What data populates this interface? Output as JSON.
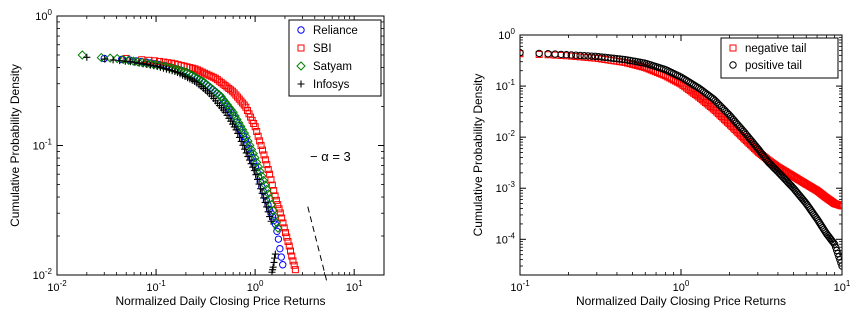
{
  "chart_data": [
    {
      "type": "scatter",
      "xlabel": "Normalized Daily Closing Price Returns",
      "ylabel": "Cumulative Probability Density",
      "xscale": "log",
      "yscale": "log",
      "xlim": [
        0.01,
        20
      ],
      "ylim": [
        0.01,
        1
      ],
      "x_ticks": [
        {
          "value": 0.01,
          "base": "10",
          "exp": "-2"
        },
        {
          "value": 0.1,
          "base": "10",
          "exp": "-1"
        },
        {
          "value": 1,
          "base": "10",
          "exp": "0"
        },
        {
          "value": 10,
          "base": "10",
          "exp": "1"
        }
      ],
      "y_ticks": [
        {
          "value": 0.01,
          "base": "10",
          "exp": "-2"
        },
        {
          "value": 0.1,
          "base": "10",
          "exp": "-1"
        },
        {
          "value": 1,
          "base": "10",
          "exp": "0"
        }
      ],
      "grid": false,
      "legend_position": "top-right",
      "series": [
        {
          "name": "Reliance",
          "marker": "circle",
          "color": "#0000ff",
          "n": 70,
          "x": [
            0.03,
            0.05,
            0.08,
            0.13,
            0.2,
            0.3,
            0.45,
            0.6,
            0.8,
            1.0,
            1.2,
            1.4,
            1.6,
            1.7,
            1.8,
            1.9
          ],
          "y": [
            0.47,
            0.46,
            0.44,
            0.41,
            0.37,
            0.31,
            0.24,
            0.17,
            0.11,
            0.07,
            0.045,
            0.032,
            0.025,
            0.02,
            0.015,
            0.012
          ]
        },
        {
          "name": "SBI",
          "marker": "square",
          "color": "#ff0000",
          "n": 78,
          "x": [
            0.05,
            0.1,
            0.15,
            0.25,
            0.4,
            0.6,
            0.8,
            1.0,
            1.2,
            1.4,
            1.6,
            1.8,
            2.0,
            2.2,
            2.4,
            2.55
          ],
          "y": [
            0.47,
            0.45,
            0.43,
            0.39,
            0.33,
            0.26,
            0.2,
            0.14,
            0.09,
            0.06,
            0.04,
            0.03,
            0.022,
            0.017,
            0.013,
            0.011
          ]
        },
        {
          "name": "Satyam",
          "marker": "diamond",
          "color": "#008000",
          "n": 70,
          "x": [
            0.018,
            0.025,
            0.04,
            0.07,
            0.12,
            0.2,
            0.3,
            0.45,
            0.6,
            0.8,
            1.0,
            1.2,
            1.4,
            1.55,
            1.7
          ],
          "y": [
            0.5,
            0.48,
            0.47,
            0.44,
            0.41,
            0.37,
            0.31,
            0.24,
            0.18,
            0.12,
            0.08,
            0.055,
            0.04,
            0.03,
            0.023
          ]
        },
        {
          "name": "Infosys",
          "marker": "plus",
          "color": "#000000",
          "n": 70,
          "x": [
            0.02,
            0.035,
            0.06,
            0.1,
            0.16,
            0.25,
            0.35,
            0.5,
            0.65,
            0.8,
            1.0,
            1.15,
            1.3,
            1.45
          ],
          "y": [
            0.48,
            0.46,
            0.44,
            0.41,
            0.37,
            0.31,
            0.25,
            0.18,
            0.13,
            0.09,
            0.062,
            0.045,
            0.034,
            0.026
          ],
          "outliers": {
            "x": [
              1.48,
              1.5,
              1.52,
              1.55,
              1.57,
              1.6
            ],
            "y": [
              0.0105,
              0.011,
              0.0115,
              0.0125,
              0.0135,
              0.0145
            ]
          }
        }
      ],
      "reference_line": {
        "label": "− α = 3",
        "slope": -3,
        "style": "dashed",
        "x": [
          3.4,
          5.3
        ],
        "y": [
          0.0337,
          0.0089
        ]
      }
    },
    {
      "type": "scatter",
      "xlabel": "Normalized Daily Closing Price Returns",
      "ylabel": "Cumulative Probability Density",
      "xscale": "log",
      "yscale": "log",
      "xlim": [
        0.1,
        10
      ],
      "ylim": [
        2e-05,
        1
      ],
      "x_ticks": [
        {
          "value": 0.1,
          "base": "10",
          "exp": "-1"
        },
        {
          "value": 1,
          "base": "10",
          "exp": "0"
        },
        {
          "value": 10,
          "base": "10",
          "exp": "1"
        }
      ],
      "y_ticks": [
        {
          "value": 0.0001,
          "base": "10",
          "exp": "-4"
        },
        {
          "value": 0.001,
          "base": "10",
          "exp": "-3"
        },
        {
          "value": 0.01,
          "base": "10",
          "exp": "-2"
        },
        {
          "value": 0.1,
          "base": "10",
          "exp": "-1"
        },
        {
          "value": 1,
          "base": "10",
          "exp": "0"
        }
      ],
      "grid": false,
      "legend_position": "top-right",
      "series": [
        {
          "name": "negative tail",
          "marker": "square",
          "color": "#ff0000",
          "n": 170,
          "x": [
            0.1,
            0.15,
            0.2,
            0.3,
            0.45,
            0.6,
            0.8,
            1.0,
            1.3,
            1.6,
            2.0,
            2.5,
            3.0,
            3.5,
            4.0,
            5.0,
            6.0,
            7.0,
            8.0,
            9.0,
            10.0
          ],
          "y": [
            0.43,
            0.41,
            0.39,
            0.35,
            0.29,
            0.23,
            0.16,
            0.11,
            0.06,
            0.035,
            0.018,
            0.009,
            0.0052,
            0.0035,
            0.0026,
            0.0017,
            0.0012,
            0.0009,
            0.00065,
            0.0005,
            0.00045
          ]
        },
        {
          "name": "positive tail",
          "marker": "circle",
          "color": "#000000",
          "n": 170,
          "x": [
            0.1,
            0.15,
            0.2,
            0.3,
            0.45,
            0.6,
            0.8,
            1.0,
            1.3,
            1.6,
            2.0,
            2.5,
            3.0,
            3.5,
            4.0,
            5.0,
            6.0,
            7.0,
            8.0,
            9.0,
            10.0
          ],
          "y": [
            0.45,
            0.43,
            0.41,
            0.38,
            0.33,
            0.28,
            0.21,
            0.15,
            0.09,
            0.055,
            0.027,
            0.012,
            0.006,
            0.0032,
            0.0021,
            0.001,
            0.0005,
            0.00025,
            0.00013,
            8e-05,
            3e-05
          ]
        }
      ]
    }
  ]
}
